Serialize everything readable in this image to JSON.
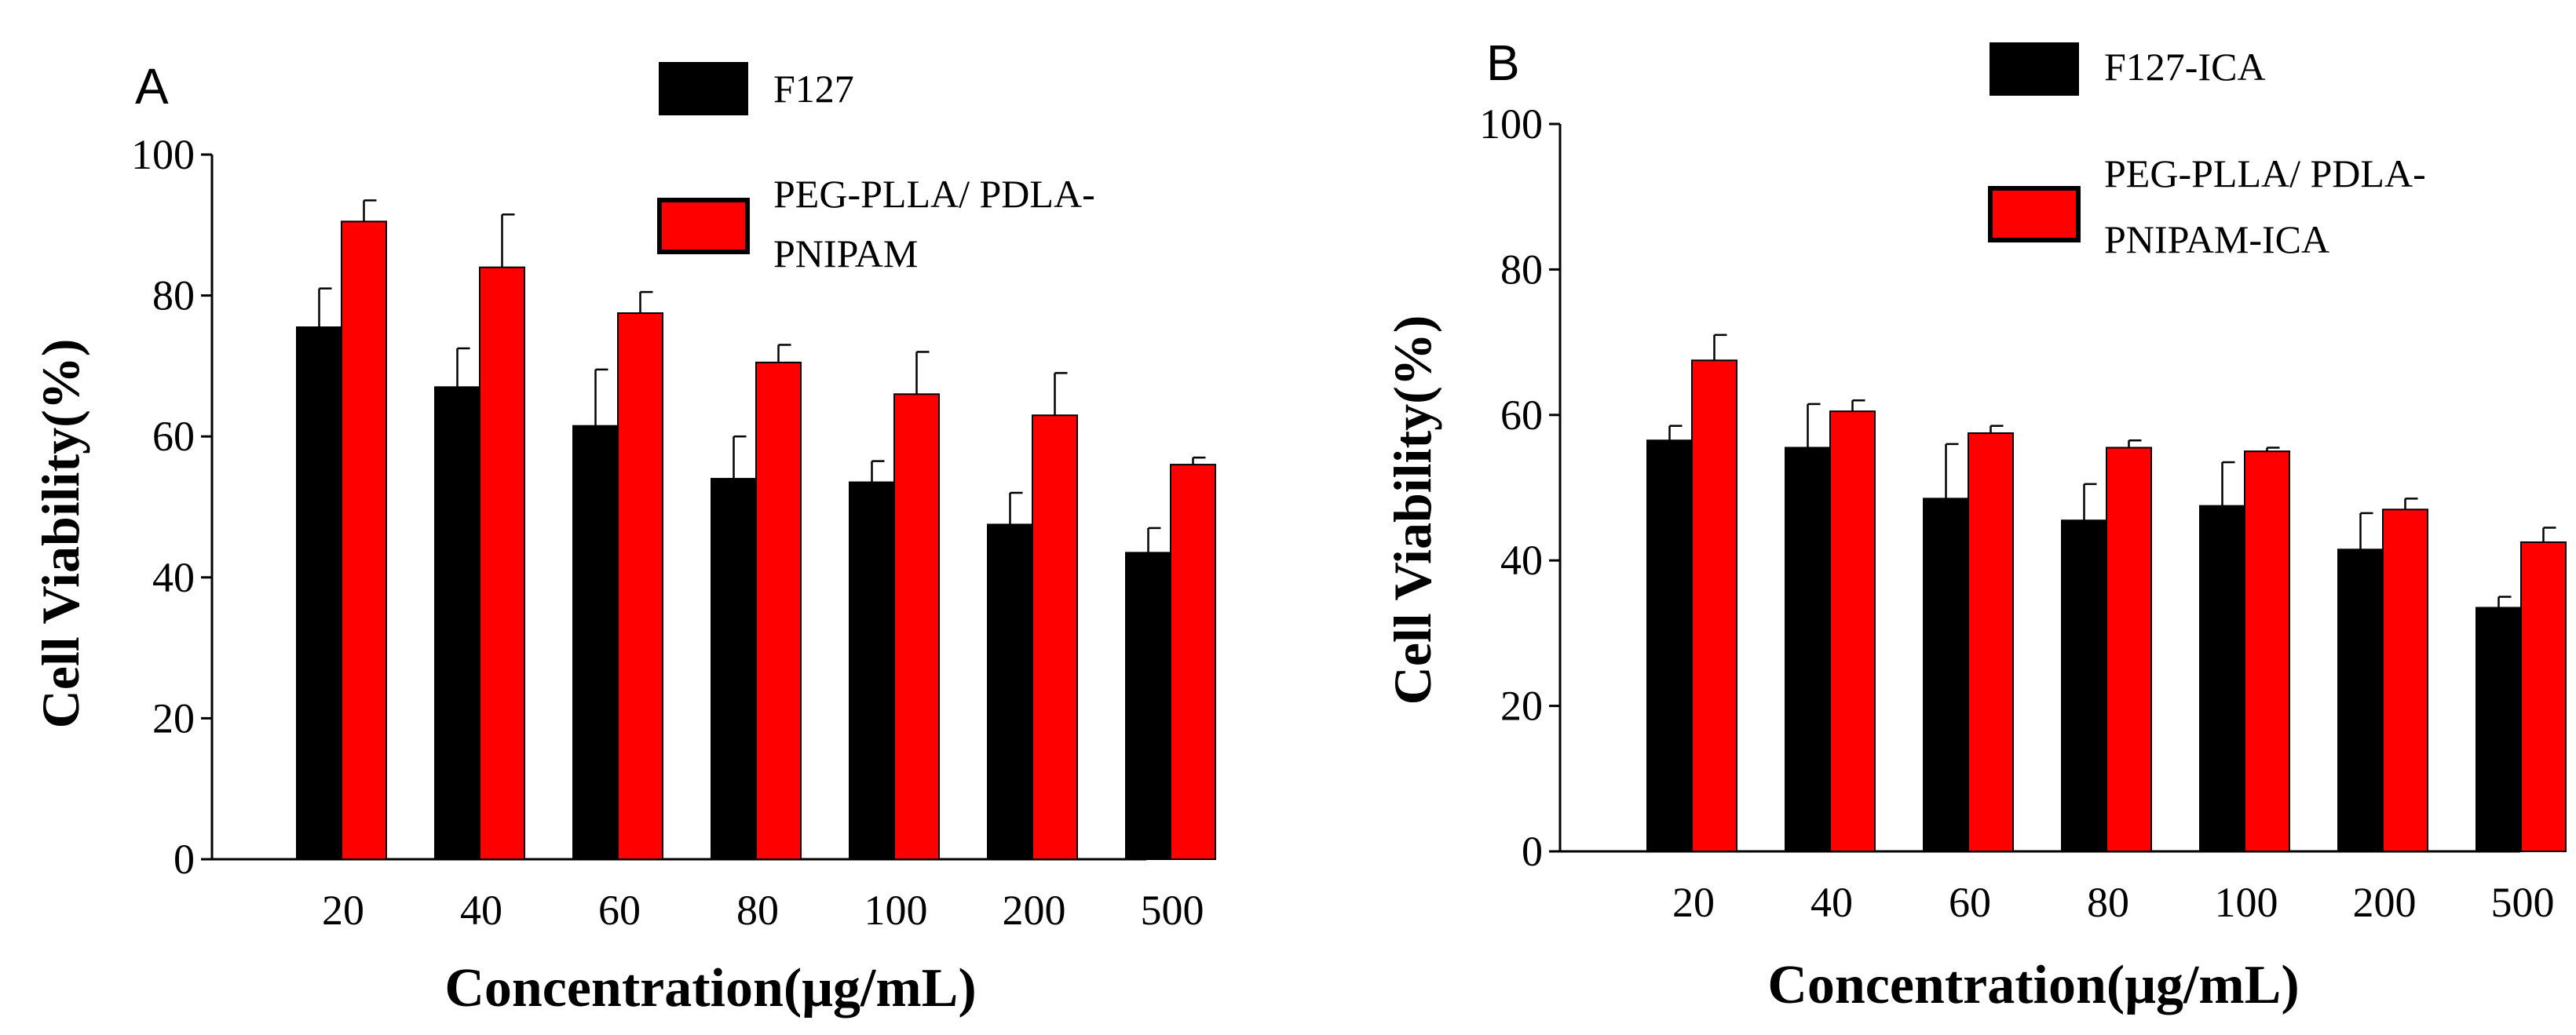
{
  "chart_data": [
    {
      "panel": "A",
      "type": "bar",
      "categories": [
        "20",
        "40",
        "60",
        "80",
        "100",
        "200",
        "500"
      ],
      "series": [
        {
          "name": "F127",
          "color": "#000000",
          "values": [
            75.5,
            67,
            61.5,
            54,
            53.5,
            47.5,
            43.5
          ],
          "errors": [
            5.5,
            5.5,
            8,
            6,
            3,
            4.5,
            3.5
          ]
        },
        {
          "name": "PEG-PLLA/ PDLA-PNIPAM",
          "legend_lines": [
            "PEG-PLLA/ PDLA-",
            "PNIPAM"
          ],
          "color": "#ff0000",
          "values": [
            90.5,
            84,
            77.5,
            70.5,
            66,
            63,
            56
          ],
          "errors": [
            3,
            7.5,
            3,
            2.5,
            6,
            6,
            1
          ]
        }
      ],
      "title": "",
      "xlabel": "Concentration(μg/mL)",
      "ylabel": "Cell Viability(%)",
      "ylim": [
        0,
        100
      ],
      "yticks": [
        "0",
        "20",
        "40",
        "60",
        "80",
        "100"
      ]
    },
    {
      "panel": "B",
      "type": "bar",
      "categories": [
        "20",
        "40",
        "60",
        "80",
        "100",
        "200",
        "500"
      ],
      "series": [
        {
          "name": "F127-ICA",
          "color": "#000000",
          "values": [
            56.5,
            55.5,
            48.5,
            45.5,
            47.5,
            41.5,
            33.5
          ],
          "errors": [
            2,
            6,
            7.5,
            5,
            6,
            5,
            1.5
          ]
        },
        {
          "name": "PEG-PLLA/ PDLA-PNIPAM-ICA",
          "legend_lines": [
            "PEG-PLLA/ PDLA-",
            "PNIPAM-ICA"
          ],
          "color": "#ff0000",
          "values": [
            67.5,
            60.5,
            57.5,
            55.5,
            55,
            47,
            42.5
          ],
          "errors": [
            3.5,
            1.5,
            1,
            1,
            0.5,
            1.5,
            2
          ]
        }
      ],
      "title": "",
      "xlabel": "Concentration(μg/mL)",
      "ylabel": "Cell Viability(%)",
      "ylim": [
        0,
        100
      ],
      "yticks": [
        "0",
        "20",
        "40",
        "60",
        "80",
        "100"
      ]
    }
  ]
}
